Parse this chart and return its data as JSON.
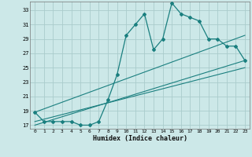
{
  "xlabel": "Humidex (Indice chaleur)",
  "bg_color": "#cce8e8",
  "line_color": "#1a7f7f",
  "grid_color": "#aacccc",
  "xlim": [
    -0.5,
    23.5
  ],
  "ylim": [
    16.5,
    34.2
  ],
  "xticks": [
    0,
    1,
    2,
    3,
    4,
    5,
    6,
    7,
    8,
    9,
    10,
    11,
    12,
    13,
    14,
    15,
    16,
    17,
    18,
    19,
    20,
    21,
    22,
    23
  ],
  "yticks": [
    17,
    19,
    21,
    23,
    25,
    27,
    29,
    31,
    33
  ],
  "main_x": [
    0,
    1,
    2,
    3,
    4,
    5,
    6,
    7,
    8,
    9,
    10,
    11,
    12,
    13,
    14,
    15,
    16,
    17,
    18,
    19,
    20,
    21,
    22,
    23
  ],
  "main_y": [
    18.8,
    17.5,
    17.5,
    17.5,
    17.5,
    17.0,
    17.0,
    17.5,
    20.5,
    24.0,
    29.5,
    31.0,
    32.5,
    27.5,
    29.0,
    34.0,
    32.5,
    32.0,
    31.5,
    29.0,
    29.0,
    28.0,
    28.0,
    26.0
  ],
  "line1_x": [
    0,
    23
  ],
  "line1_y": [
    18.8,
    29.5
  ],
  "line2_x": [
    0,
    23
  ],
  "line2_y": [
    17.0,
    26.0
  ],
  "line3_x": [
    0,
    23
  ],
  "line3_y": [
    17.5,
    25.0
  ]
}
